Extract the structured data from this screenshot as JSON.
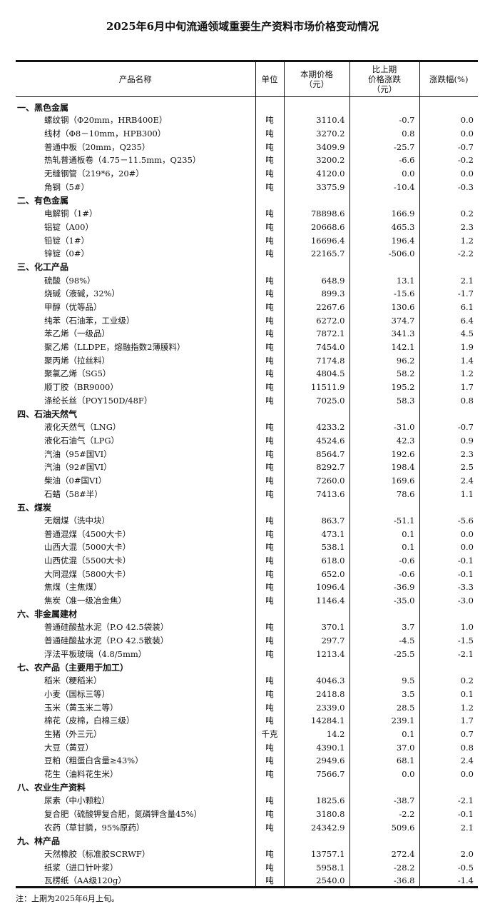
{
  "title": "2025年6月中旬流通领域重要生产资料市场价格变动情况",
  "headers": {
    "name": "产品名称",
    "unit": "单位",
    "price": "本期价格\n（元）",
    "change": "比上期\n价格涨跌\n（元）",
    "pct": "涨跌幅(%)"
  },
  "sections": [
    {
      "title": "一、黑色金属",
      "items": [
        [
          "螺纹钢（Φ20mm，HRB400E）",
          "吨",
          "3110.4",
          "-0.7",
          "0.0"
        ],
        [
          "线材（Φ8－10mm，HPB300）",
          "吨",
          "3270.2",
          "0.8",
          "0.0"
        ],
        [
          "普通中板（20mm，Q235）",
          "吨",
          "3409.9",
          "-25.7",
          "-0.7"
        ],
        [
          "热轧普通板卷（4.75－11.5mm，Q235）",
          "吨",
          "3200.2",
          "-6.6",
          "-0.2"
        ],
        [
          "无缝钢管（219*6，20#）",
          "吨",
          "4120.0",
          "0.0",
          "0.0"
        ],
        [
          "角钢（5#）",
          "吨",
          "3375.9",
          "-10.4",
          "-0.3"
        ]
      ]
    },
    {
      "title": "二、有色金属",
      "items": [
        [
          "电解铜（1#）",
          "吨",
          "78898.6",
          "166.9",
          "0.2"
        ],
        [
          "铝锭（A00）",
          "吨",
          "20668.6",
          "465.3",
          "2.3"
        ],
        [
          "铅锭（1#）",
          "吨",
          "16696.4",
          "196.4",
          "1.2"
        ],
        [
          "锌锭（0#）",
          "吨",
          "22165.7",
          "-506.0",
          "-2.2"
        ]
      ]
    },
    {
      "title": "三、化工产品",
      "items": [
        [
          "硫酸（98%）",
          "吨",
          "648.9",
          "13.1",
          "2.1"
        ],
        [
          "烧碱（液碱，32%）",
          "吨",
          "899.3",
          "-15.6",
          "-1.7"
        ],
        [
          "甲醇（优等品）",
          "吨",
          "2267.6",
          "130.6",
          "6.1"
        ],
        [
          "纯苯（石油苯，工业级）",
          "吨",
          "6272.0",
          "374.7",
          "6.4"
        ],
        [
          "苯乙烯（一级品）",
          "吨",
          "7872.1",
          "341.3",
          "4.5"
        ],
        [
          "聚乙烯（LLDPE，熔融指数2薄膜料）",
          "吨",
          "7454.0",
          "142.1",
          "1.9"
        ],
        [
          "聚丙烯（拉丝料）",
          "吨",
          "7174.8",
          "96.2",
          "1.4"
        ],
        [
          "聚氯乙烯（SG5）",
          "吨",
          "4804.5",
          "58.2",
          "1.2"
        ],
        [
          "顺丁胶（BR9000）",
          "吨",
          "11511.9",
          "195.2",
          "1.7"
        ],
        [
          "涤纶长丝（POY150D/48F）",
          "吨",
          "7025.0",
          "58.3",
          "0.8"
        ]
      ]
    },
    {
      "title": "四、石油天然气",
      "items": [
        [
          "液化天然气（LNG）",
          "吨",
          "4233.2",
          "-31.0",
          "-0.7"
        ],
        [
          "液化石油气（LPG）",
          "吨",
          "4524.6",
          "42.3",
          "0.9"
        ],
        [
          "汽油（95#国VI）",
          "吨",
          "8564.7",
          "192.6",
          "2.3"
        ],
        [
          "汽油（92#国VI）",
          "吨",
          "8292.7",
          "198.4",
          "2.5"
        ],
        [
          "柴油（0#国VI）",
          "吨",
          "7260.0",
          "169.6",
          "2.4"
        ],
        [
          "石蜡（58#半）",
          "吨",
          "7413.6",
          "78.6",
          "1.1"
        ]
      ]
    },
    {
      "title": "五、煤炭",
      "items": [
        [
          "无烟煤（洗中块）",
          "吨",
          "863.7",
          "-51.1",
          "-5.6"
        ],
        [
          "普通混煤（4500大卡）",
          "吨",
          "473.1",
          "0.1",
          "0.0"
        ],
        [
          "山西大混（5000大卡）",
          "吨",
          "538.1",
          "0.1",
          "0.0"
        ],
        [
          "山西优混（5500大卡）",
          "吨",
          "618.0",
          "-0.6",
          "-0.1"
        ],
        [
          "大同混煤（5800大卡）",
          "吨",
          "652.0",
          "-0.6",
          "-0.1"
        ],
        [
          "焦煤（主焦煤）",
          "吨",
          "1096.4",
          "-36.9",
          "-3.3"
        ],
        [
          "焦炭（准一级冶金焦）",
          "吨",
          "1146.4",
          "-35.0",
          "-3.0"
        ]
      ]
    },
    {
      "title": "六、非金属建材",
      "items": [
        [
          "普通硅酸盐水泥（P.O 42.5袋装）",
          "吨",
          "370.1",
          "3.7",
          "1.0"
        ],
        [
          "普通硅酸盐水泥（P.O 42.5散装）",
          "吨",
          "297.7",
          "-4.5",
          "-1.5"
        ],
        [
          "浮法平板玻璃（4.8/5mm）",
          "吨",
          "1213.4",
          "-25.5",
          "-2.1"
        ]
      ]
    },
    {
      "title": "七、农产品（主要用于加工）",
      "items": [
        [
          "稻米（粳稻米）",
          "吨",
          "4046.3",
          "9.5",
          "0.2"
        ],
        [
          "小麦（国标三等）",
          "吨",
          "2418.8",
          "3.5",
          "0.1"
        ],
        [
          "玉米（黄玉米二等）",
          "吨",
          "2339.0",
          "28.5",
          "1.2"
        ],
        [
          "棉花（皮棉，白棉三级）",
          "吨",
          "14284.1",
          "239.1",
          "1.7"
        ],
        [
          "生猪（外三元）",
          "千克",
          "14.2",
          "0.1",
          "0.7"
        ],
        [
          "大豆（黄豆）",
          "吨",
          "4390.1",
          "37.0",
          "0.8"
        ],
        [
          "豆粕（粗蛋白含量≥43%）",
          "吨",
          "2949.6",
          "68.1",
          "2.4"
        ],
        [
          "花生（油料花生米）",
          "吨",
          "7566.7",
          "0.0",
          "0.0"
        ]
      ]
    },
    {
      "title": "八、农业生产资料",
      "items": [
        [
          "尿素（中小颗粒）",
          "吨",
          "1825.6",
          "-38.7",
          "-2.1"
        ],
        [
          "复合肥（硫酸钾复合肥，氮磷钾含量45%）",
          "吨",
          "3180.8",
          "-2.2",
          "-0.1"
        ],
        [
          "农药（草甘膦，95%原药）",
          "吨",
          "24342.9",
          "509.6",
          "2.1"
        ]
      ]
    },
    {
      "title": "九、林产品",
      "items": [
        [
          "天然橡胶（标准胶SCRWF）",
          "吨",
          "13757.1",
          "272.4",
          "2.0"
        ],
        [
          "纸浆（进口针叶浆）",
          "吨",
          "5958.1",
          "-28.2",
          "-0.5"
        ],
        [
          "瓦楞纸（AA级120g）",
          "吨",
          "2540.0",
          "-36.8",
          "-1.4"
        ]
      ]
    }
  ],
  "note": "注：上期为2025年6月上旬。"
}
